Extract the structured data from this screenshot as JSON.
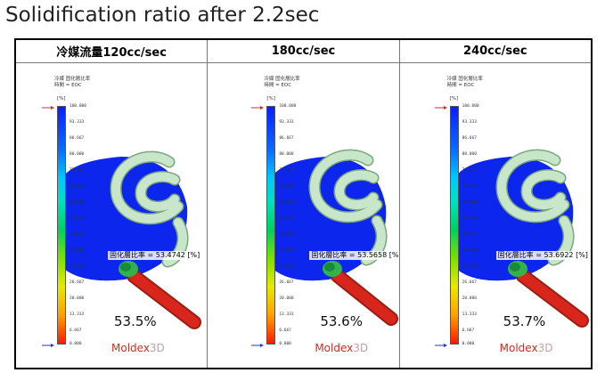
{
  "title": "Solidification ratio after 2.2sec",
  "legend": {
    "title_line1": "冷媒 固化層比率",
    "title_line2": "時間 = EOC",
    "unit": "[%]",
    "ticks": [
      "100.000",
      "93.333",
      "86.667",
      "80.000",
      "73.333",
      "66.667",
      "60.000",
      "53.333",
      "46.667",
      "40.000",
      "33.333",
      "26.667",
      "20.000",
      "13.333",
      "6.667",
      "0.000"
    ]
  },
  "panels": [
    {
      "header": "冷媒流量120cc/sec",
      "probe": "固化層比率 = 53.4742 [%]",
      "result": "53.5%"
    },
    {
      "header": "180cc/sec",
      "probe": "固化層比率 = 53.5658 [%]",
      "result": "53.6%"
    },
    {
      "header": "240cc/sec",
      "probe": "固化層比率 = 53.6922 [%]",
      "result": "53.7%"
    }
  ],
  "logo": {
    "main": "Moldex",
    "suffix": "3D"
  },
  "colors": {
    "mold": "#0c26ee",
    "channel": "#c8e6c9",
    "channel_edge": "#7aa77c",
    "runner": "#d8261c",
    "accent_red": "#d42b1e"
  }
}
